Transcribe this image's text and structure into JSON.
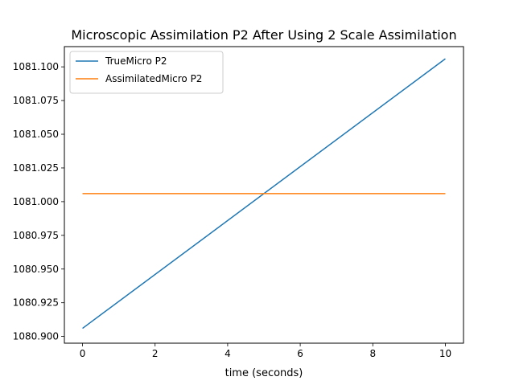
{
  "chart_data": {
    "type": "line",
    "title": "Microscopic Assimilation P2 After Using 2 Scale Assimilation",
    "xlabel": "time (seconds)",
    "ylabel": "",
    "xlim": [
      -0.5,
      10.5
    ],
    "ylim": [
      1080.895,
      1081.115
    ],
    "x_ticks": [
      0,
      2,
      4,
      6,
      8,
      10
    ],
    "y_ticks": [
      1080.9,
      1080.925,
      1080.95,
      1080.975,
      1081.0,
      1081.025,
      1081.05,
      1081.075,
      1081.1
    ],
    "x_tick_labels": [
      "0",
      "2",
      "4",
      "6",
      "8",
      "10"
    ],
    "y_tick_labels": [
      "1080.900",
      "1080.925",
      "1080.950",
      "1080.975",
      "1081.000",
      "1081.025",
      "1081.050",
      "1081.075",
      "1081.100"
    ],
    "grid": false,
    "legend_position": "top-left",
    "series": [
      {
        "name": "TrueMicro P2",
        "color": "#1f77b4",
        "x": [
          0,
          10
        ],
        "y": [
          1080.906,
          1081.106
        ]
      },
      {
        "name": "AssimilatedMicro P2",
        "color": "#ff7f0e",
        "x": [
          0,
          10
        ],
        "y": [
          1081.006,
          1081.006
        ]
      }
    ]
  }
}
